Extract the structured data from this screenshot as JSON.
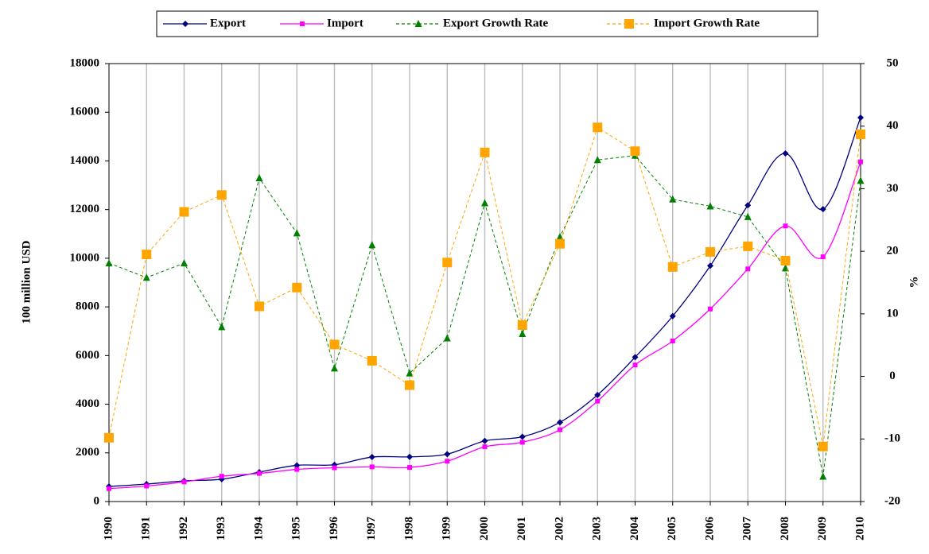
{
  "chart_data": {
    "type": "line",
    "categories": [
      "1990",
      "1991",
      "1992",
      "1993",
      "1994",
      "1995",
      "1996",
      "1997",
      "1998",
      "1999",
      "2000",
      "2001",
      "2002",
      "2003",
      "2004",
      "2005",
      "2006",
      "2007",
      "2008",
      "2009",
      "2010"
    ],
    "y_label": "100 million USD",
    "y2_label": "%",
    "ylim": [
      0,
      18000
    ],
    "yticks": [
      0,
      2000,
      4000,
      6000,
      8000,
      10000,
      12000,
      14000,
      16000,
      18000
    ],
    "y2lim": [
      -20,
      50
    ],
    "y2ticks": [
      -20,
      -10,
      0,
      10,
      20,
      30,
      40,
      50
    ],
    "grid": "x",
    "legend": "top",
    "series": [
      {
        "name": "Export",
        "color": "#000080",
        "marker": "diamond",
        "dashed": false,
        "smooth": true,
        "values": [
          621,
          719,
          849,
          917,
          1210,
          1488,
          1511,
          1828,
          1837,
          1949,
          2492,
          2661,
          3256,
          4382,
          5933,
          7620,
          9689,
          12178,
          14307,
          12016,
          15779
        ]
      },
      {
        "name": "Import",
        "color": "#ff00ff",
        "marker": "square",
        "dashed": false,
        "smooth": true,
        "values": [
          533,
          638,
          806,
          1040,
          1156,
          1321,
          1388,
          1424,
          1402,
          1657,
          2251,
          2436,
          2952,
          4128,
          5612,
          6600,
          7915,
          9560,
          11326,
          10059,
          13962
        ]
      },
      {
        "name": "Export Growth Rate",
        "color": "#008000",
        "marker": "triangle",
        "dashed": true,
        "smooth": false,
        "axis": "y2",
        "values": [
          18.1,
          15.8,
          18.1,
          7.9,
          31.7,
          22.9,
          1.3,
          21.0,
          0.5,
          6.1,
          27.7,
          6.8,
          22.3,
          34.6,
          35.3,
          28.3,
          27.2,
          25.5,
          17.3,
          -16.0,
          31.3
        ]
      },
      {
        "name": "Import Growth Rate",
        "color": "#ffa500",
        "marker": "bigsquare",
        "dashed": true,
        "smooth": false,
        "axis": "y2",
        "values": [
          -9.8,
          19.5,
          26.3,
          29.0,
          11.2,
          14.2,
          5.1,
          2.5,
          -1.4,
          18.2,
          35.8,
          8.2,
          21.2,
          39.8,
          36.0,
          17.5,
          19.9,
          20.8,
          18.5,
          -11.2,
          38.7
        ]
      }
    ]
  }
}
